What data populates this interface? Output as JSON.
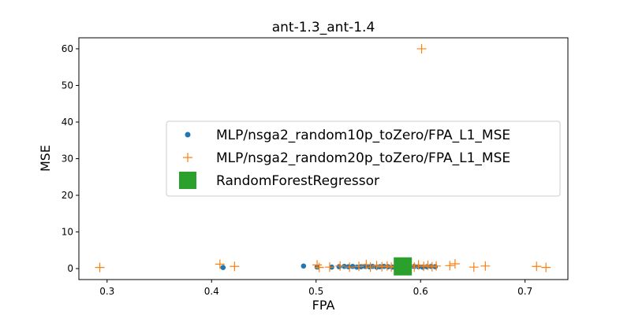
{
  "chart_data": {
    "type": "scatter",
    "title": "ant-1.3_ant-1.4",
    "xlabel": "FPA",
    "ylabel": "MSE",
    "xlim": [
      0.273,
      0.741
    ],
    "ylim": [
      -3.0,
      63.0
    ],
    "xticks": [
      0.3,
      0.4,
      0.5,
      0.6,
      0.7
    ],
    "yticks": [
      0,
      10,
      20,
      30,
      40,
      50,
      60
    ],
    "grid": false,
    "legend_position": "center-right",
    "series": [
      {
        "name": "MLP/nsga2_random10p_toZero/FPA_L1_MSE",
        "marker": "circle",
        "color": "#1f77b4",
        "points": [
          [
            0.411,
            0.3
          ],
          [
            0.488,
            0.7
          ],
          [
            0.501,
            0.4
          ],
          [
            0.515,
            0.4
          ],
          [
            0.522,
            0.5
          ],
          [
            0.527,
            0.6
          ],
          [
            0.531,
            0.5
          ],
          [
            0.535,
            0.6
          ],
          [
            0.539,
            0.4
          ],
          [
            0.543,
            0.5
          ],
          [
            0.547,
            0.6
          ],
          [
            0.551,
            0.5
          ],
          [
            0.554,
            0.6
          ],
          [
            0.558,
            0.4
          ],
          [
            0.561,
            0.5
          ],
          [
            0.565,
            0.6
          ],
          [
            0.569,
            0.5
          ],
          [
            0.573,
            0.4
          ],
          [
            0.577,
            0.5
          ],
          [
            0.58,
            0.6
          ],
          [
            0.586,
            0.5
          ],
          [
            0.59,
            0.4
          ],
          [
            0.594,
            0.6
          ],
          [
            0.598,
            0.5
          ],
          [
            0.602,
            0.4
          ],
          [
            0.606,
            0.5
          ],
          [
            0.61,
            0.6
          ],
          [
            0.614,
            0.5
          ]
        ]
      },
      {
        "name": "MLP/nsga2_random20p_toZero/FPA_L1_MSE",
        "marker": "plus",
        "color": "#ff7f0e",
        "points": [
          [
            0.293,
            0.3
          ],
          [
            0.408,
            1.2
          ],
          [
            0.422,
            0.6
          ],
          [
            0.501,
            1.0
          ],
          [
            0.503,
            0.3
          ],
          [
            0.513,
            0.4
          ],
          [
            0.523,
            0.7
          ],
          [
            0.532,
            0.4
          ],
          [
            0.541,
            0.6
          ],
          [
            0.548,
            1.1
          ],
          [
            0.552,
            0.4
          ],
          [
            0.558,
            0.8
          ],
          [
            0.563,
            0.5
          ],
          [
            0.568,
            0.7
          ],
          [
            0.572,
            0.4
          ],
          [
            0.576,
            0.6
          ],
          [
            0.581,
            0.5
          ],
          [
            0.589,
            0.8
          ],
          [
            0.594,
            0.4
          ],
          [
            0.598,
            1.0
          ],
          [
            0.601,
            60.0
          ],
          [
            0.603,
            0.6
          ],
          [
            0.607,
            0.9
          ],
          [
            0.611,
            0.5
          ],
          [
            0.615,
            0.7
          ],
          [
            0.628,
            0.8
          ],
          [
            0.633,
            1.3
          ],
          [
            0.651,
            0.4
          ],
          [
            0.662,
            0.7
          ],
          [
            0.711,
            0.6
          ],
          [
            0.72,
            0.3
          ]
        ]
      },
      {
        "name": "RandomForestRegressor",
        "marker": "square",
        "color": "#2ca02c",
        "points": [
          [
            0.583,
            0.6
          ]
        ]
      }
    ]
  }
}
